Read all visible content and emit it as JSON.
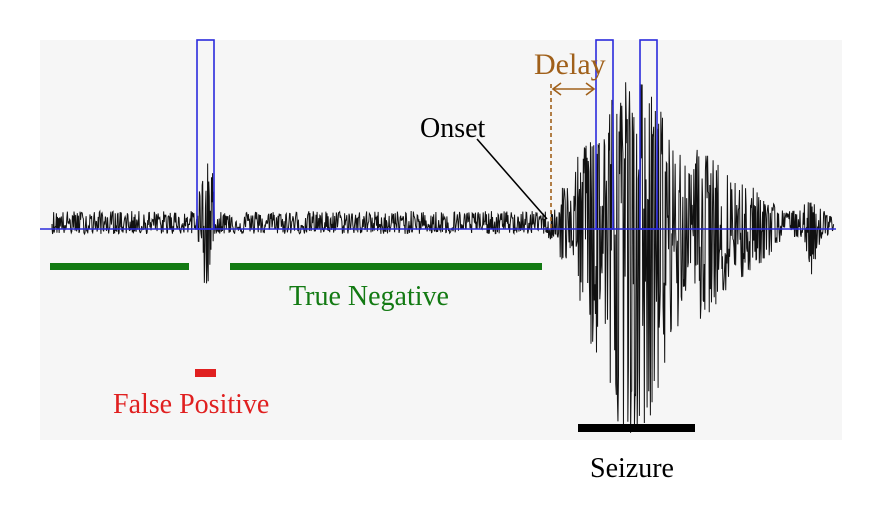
{
  "labels": {
    "delay": "Delay",
    "onset": "Onset",
    "true_negative": "True Negative",
    "false_positive": "False Positive",
    "seizure": "Seizure"
  },
  "colors": {
    "signal": "#111111",
    "detection_window": "#2b2bdc",
    "baseline": "#2b2bdc",
    "true_negative": "#137a13",
    "false_positive": "#e02020",
    "delay": "#a0601a",
    "onset": "#000000",
    "seizure": "#000000",
    "panel_background": "#f6f6f6"
  }
}
